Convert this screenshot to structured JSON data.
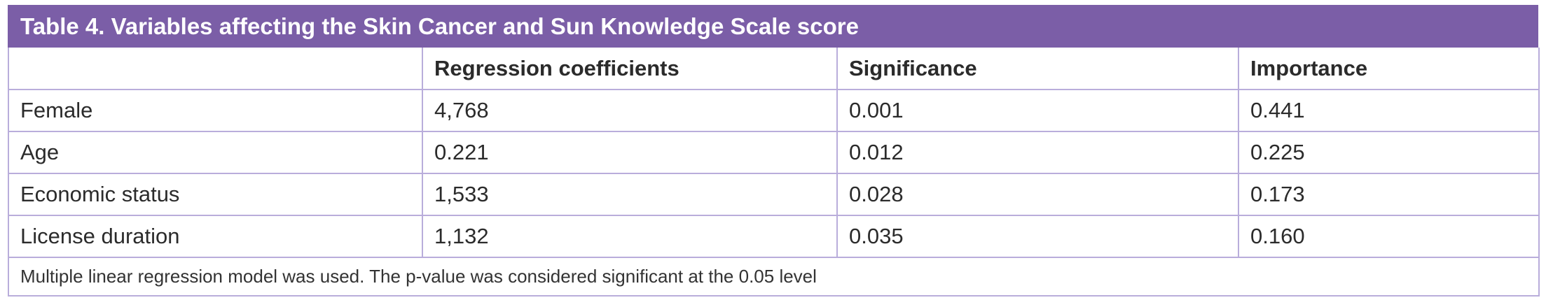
{
  "table": {
    "title": "Table 4. Variables affecting the Skin Cancer and Sun Knowledge Scale score",
    "header": [
      "Regression coefficients",
      "Significance",
      "Importance"
    ],
    "rows": [
      [
        "Female",
        "4,768",
        "0.001",
        "0.441"
      ],
      [
        "Age",
        "0.221",
        "0.012",
        "0.225"
      ],
      [
        "Economic status",
        "1,533",
        "0.028",
        "0.173"
      ],
      [
        "License duration",
        "1,132",
        "0.035",
        "0.160"
      ]
    ],
    "footnote": "Multiple linear regression model was used. The p-value was considered significant at the 0.05 level"
  }
}
